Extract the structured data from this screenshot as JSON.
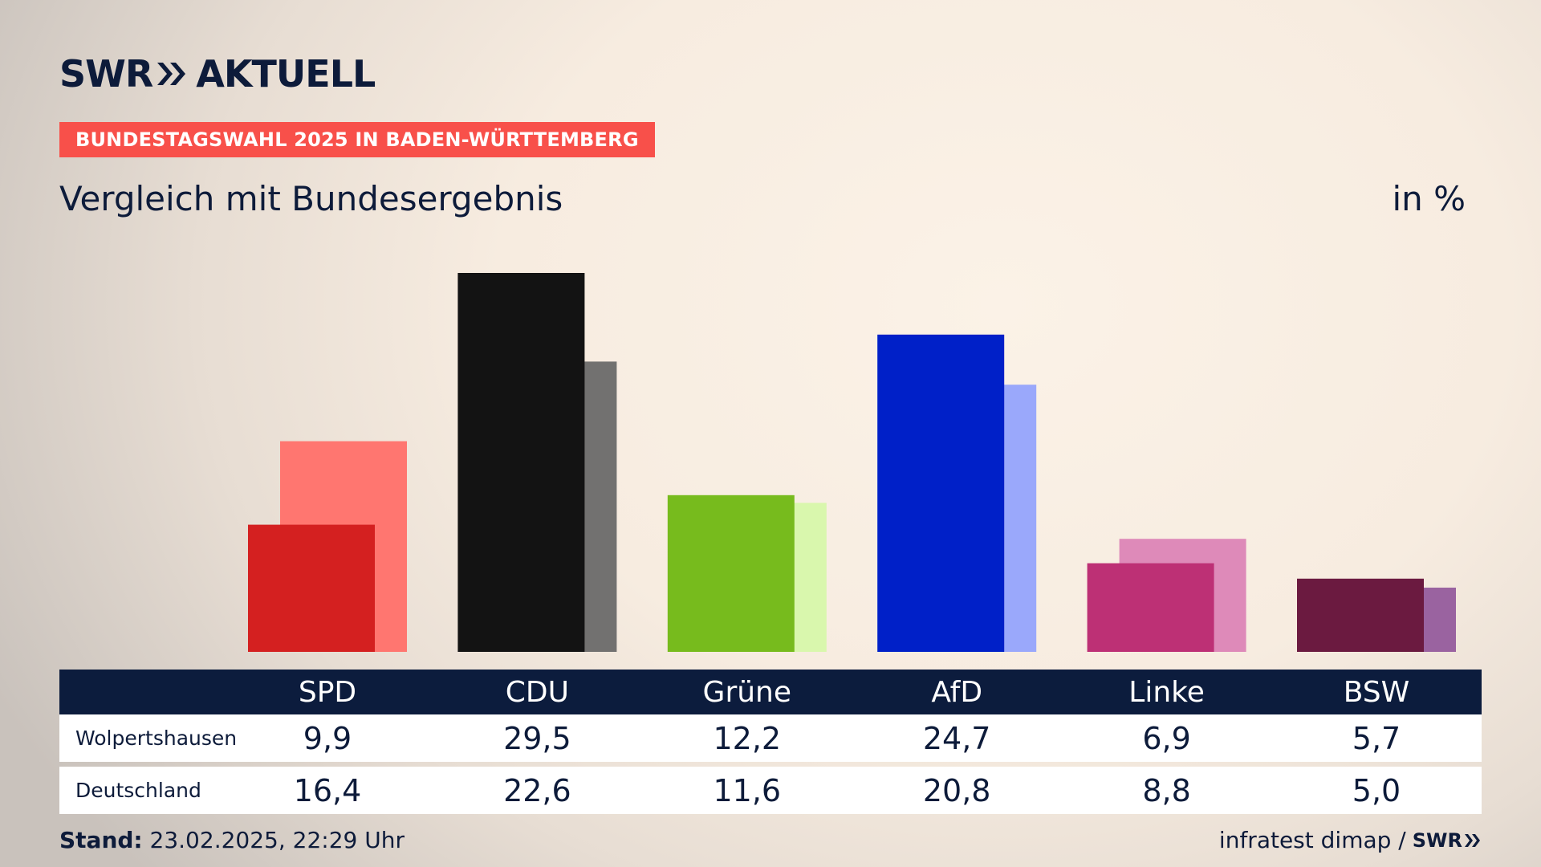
{
  "brand": {
    "logo_left": "SWR",
    "logo_right": "AKTUELL",
    "footer_logo": "SWR",
    "navy": "#0c1c3d",
    "accent": "#f8504a"
  },
  "banner": "BUNDESTAGSWAHL 2025 IN BADEN-WÜRTTEMBERG",
  "subtitle": "Vergleich mit Bundesergebnis",
  "unit": "in %",
  "footer": {
    "stand_label": "Stand:",
    "stand_value": "23.02.2025, 22:29 Uhr",
    "source": "infratest dimap /"
  },
  "chart_data": {
    "type": "bar",
    "title": "Vergleich mit Bundesergebnis",
    "ylabel": "in %",
    "ylim": [
      0,
      30
    ],
    "grid": false,
    "categories": [
      "SPD",
      "CDU",
      "Grüne",
      "AfD",
      "Linke",
      "BSW"
    ],
    "series": [
      {
        "name": "Wolpertshausen",
        "values": [
          9.9,
          29.5,
          12.2,
          24.7,
          6.9,
          5.7
        ],
        "labels": [
          "9,9",
          "29,5",
          "12,2",
          "24,7",
          "6,9",
          "5,7"
        ],
        "colors": [
          "#d42020",
          "#131313",
          "#77bb1d",
          "#0020c8",
          "#bd3075",
          "#6b1a40"
        ]
      },
      {
        "name": "Deutschland",
        "values": [
          16.4,
          22.6,
          11.6,
          20.8,
          8.8,
          5.0
        ],
        "labels": [
          "16,4",
          "22,6",
          "11,6",
          "20,8",
          "8,8",
          "5,0"
        ],
        "colors": [
          "#ff7670",
          "#727170",
          "#d9f7ad",
          "#9aa8fb",
          "#de8ab9",
          "#9a63a0"
        ]
      }
    ]
  }
}
